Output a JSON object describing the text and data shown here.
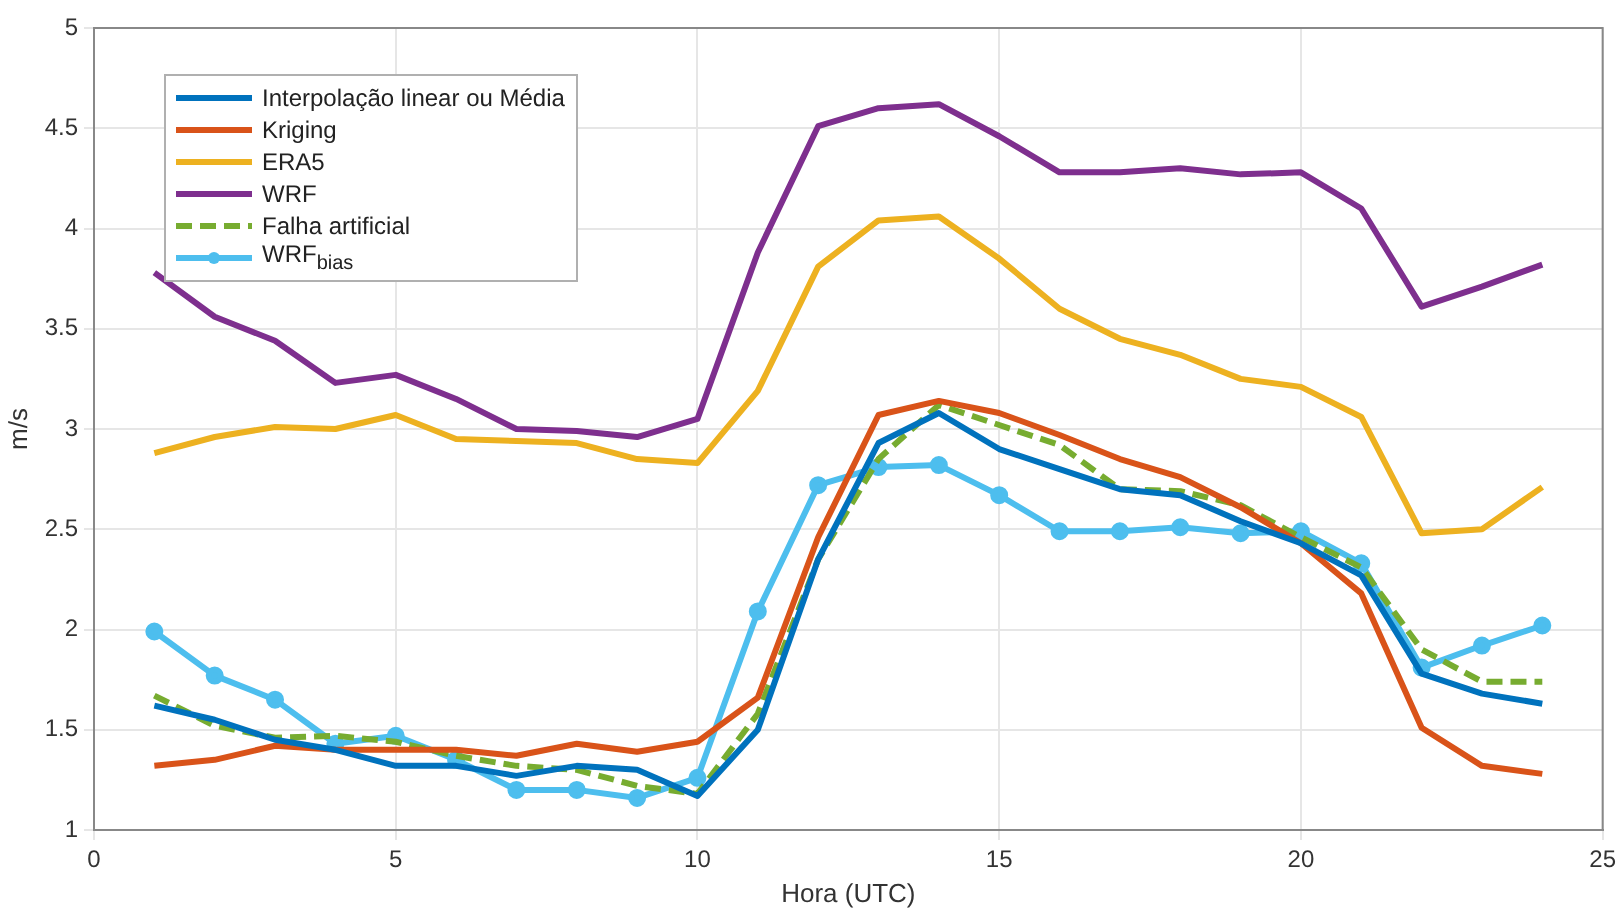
{
  "chart_data": {
    "type": "line",
    "xlabel": "Hora (UTC)",
    "ylabel": "m/s",
    "x": [
      1,
      2,
      3,
      4,
      5,
      6,
      7,
      8,
      9,
      10,
      11,
      12,
      13,
      14,
      15,
      16,
      17,
      18,
      19,
      20,
      21,
      22,
      23,
      24
    ],
    "xlim": [
      0,
      25
    ],
    "xticks": [
      0,
      5,
      10,
      15,
      20,
      25
    ],
    "ylim": [
      1,
      5
    ],
    "yticks": [
      1,
      1.5,
      2,
      2.5,
      3,
      3.5,
      4,
      4.5,
      5
    ],
    "grid": true,
    "legend": "top left",
    "marker": "none",
    "series": [
      {
        "name": "Interpolação linear ou Média",
        "color": "#0072bd",
        "values": [
          1.62,
          1.55,
          1.45,
          1.4,
          1.32,
          1.32,
          1.27,
          1.32,
          1.3,
          1.17,
          1.5,
          2.35,
          2.93,
          3.08,
          2.9,
          2.8,
          2.7,
          2.67,
          2.54,
          2.43,
          2.27,
          1.78,
          1.68,
          1.63
        ]
      },
      {
        "name": "Kriging",
        "color": "#d95319",
        "values": [
          1.32,
          1.35,
          1.42,
          1.4,
          1.4,
          1.4,
          1.37,
          1.43,
          1.39,
          1.44,
          1.66,
          2.46,
          3.07,
          3.14,
          3.08,
          2.97,
          2.85,
          2.76,
          2.61,
          2.43,
          2.18,
          1.51,
          1.32,
          1.28
        ]
      },
      {
        "name": "ERA5",
        "color": "#edb120",
        "values": [
          2.88,
          2.96,
          3.01,
          3.0,
          3.07,
          2.95,
          2.94,
          2.93,
          2.85,
          2.83,
          3.19,
          3.81,
          4.04,
          4.06,
          3.85,
          3.6,
          3.45,
          3.37,
          3.25,
          3.21,
          3.06,
          2.48,
          2.5,
          2.71
        ]
      },
      {
        "name": "WRF",
        "color": "#7e2f8e",
        "values": [
          3.78,
          3.56,
          3.44,
          3.23,
          3.27,
          3.15,
          3.0,
          2.99,
          2.96,
          3.05,
          3.88,
          4.51,
          4.6,
          4.62,
          4.46,
          4.28,
          4.28,
          4.3,
          4.27,
          4.28,
          4.1,
          3.61,
          3.71,
          3.82
        ]
      },
      {
        "name": "Falha artificial",
        "color": "#77ac30",
        "line_style": "dashed",
        "values": [
          1.67,
          1.52,
          1.46,
          1.47,
          1.44,
          1.37,
          1.32,
          1.3,
          1.22,
          1.18,
          1.58,
          2.35,
          2.85,
          3.12,
          3.02,
          2.92,
          2.7,
          2.69,
          2.62,
          2.46,
          2.31,
          1.9,
          1.74,
          1.74
        ]
      },
      {
        "name": "WRF$_{bias}$",
        "color": "#4dbeee",
        "marker": "circle",
        "values": [
          1.99,
          1.77,
          1.65,
          1.43,
          1.47,
          1.35,
          1.2,
          1.2,
          1.16,
          1.26,
          2.09,
          2.72,
          2.81,
          2.82,
          2.67,
          2.49,
          2.49,
          2.51,
          2.48,
          2.49,
          2.33,
          1.81,
          1.92,
          2.02
        ]
      }
    ]
  }
}
